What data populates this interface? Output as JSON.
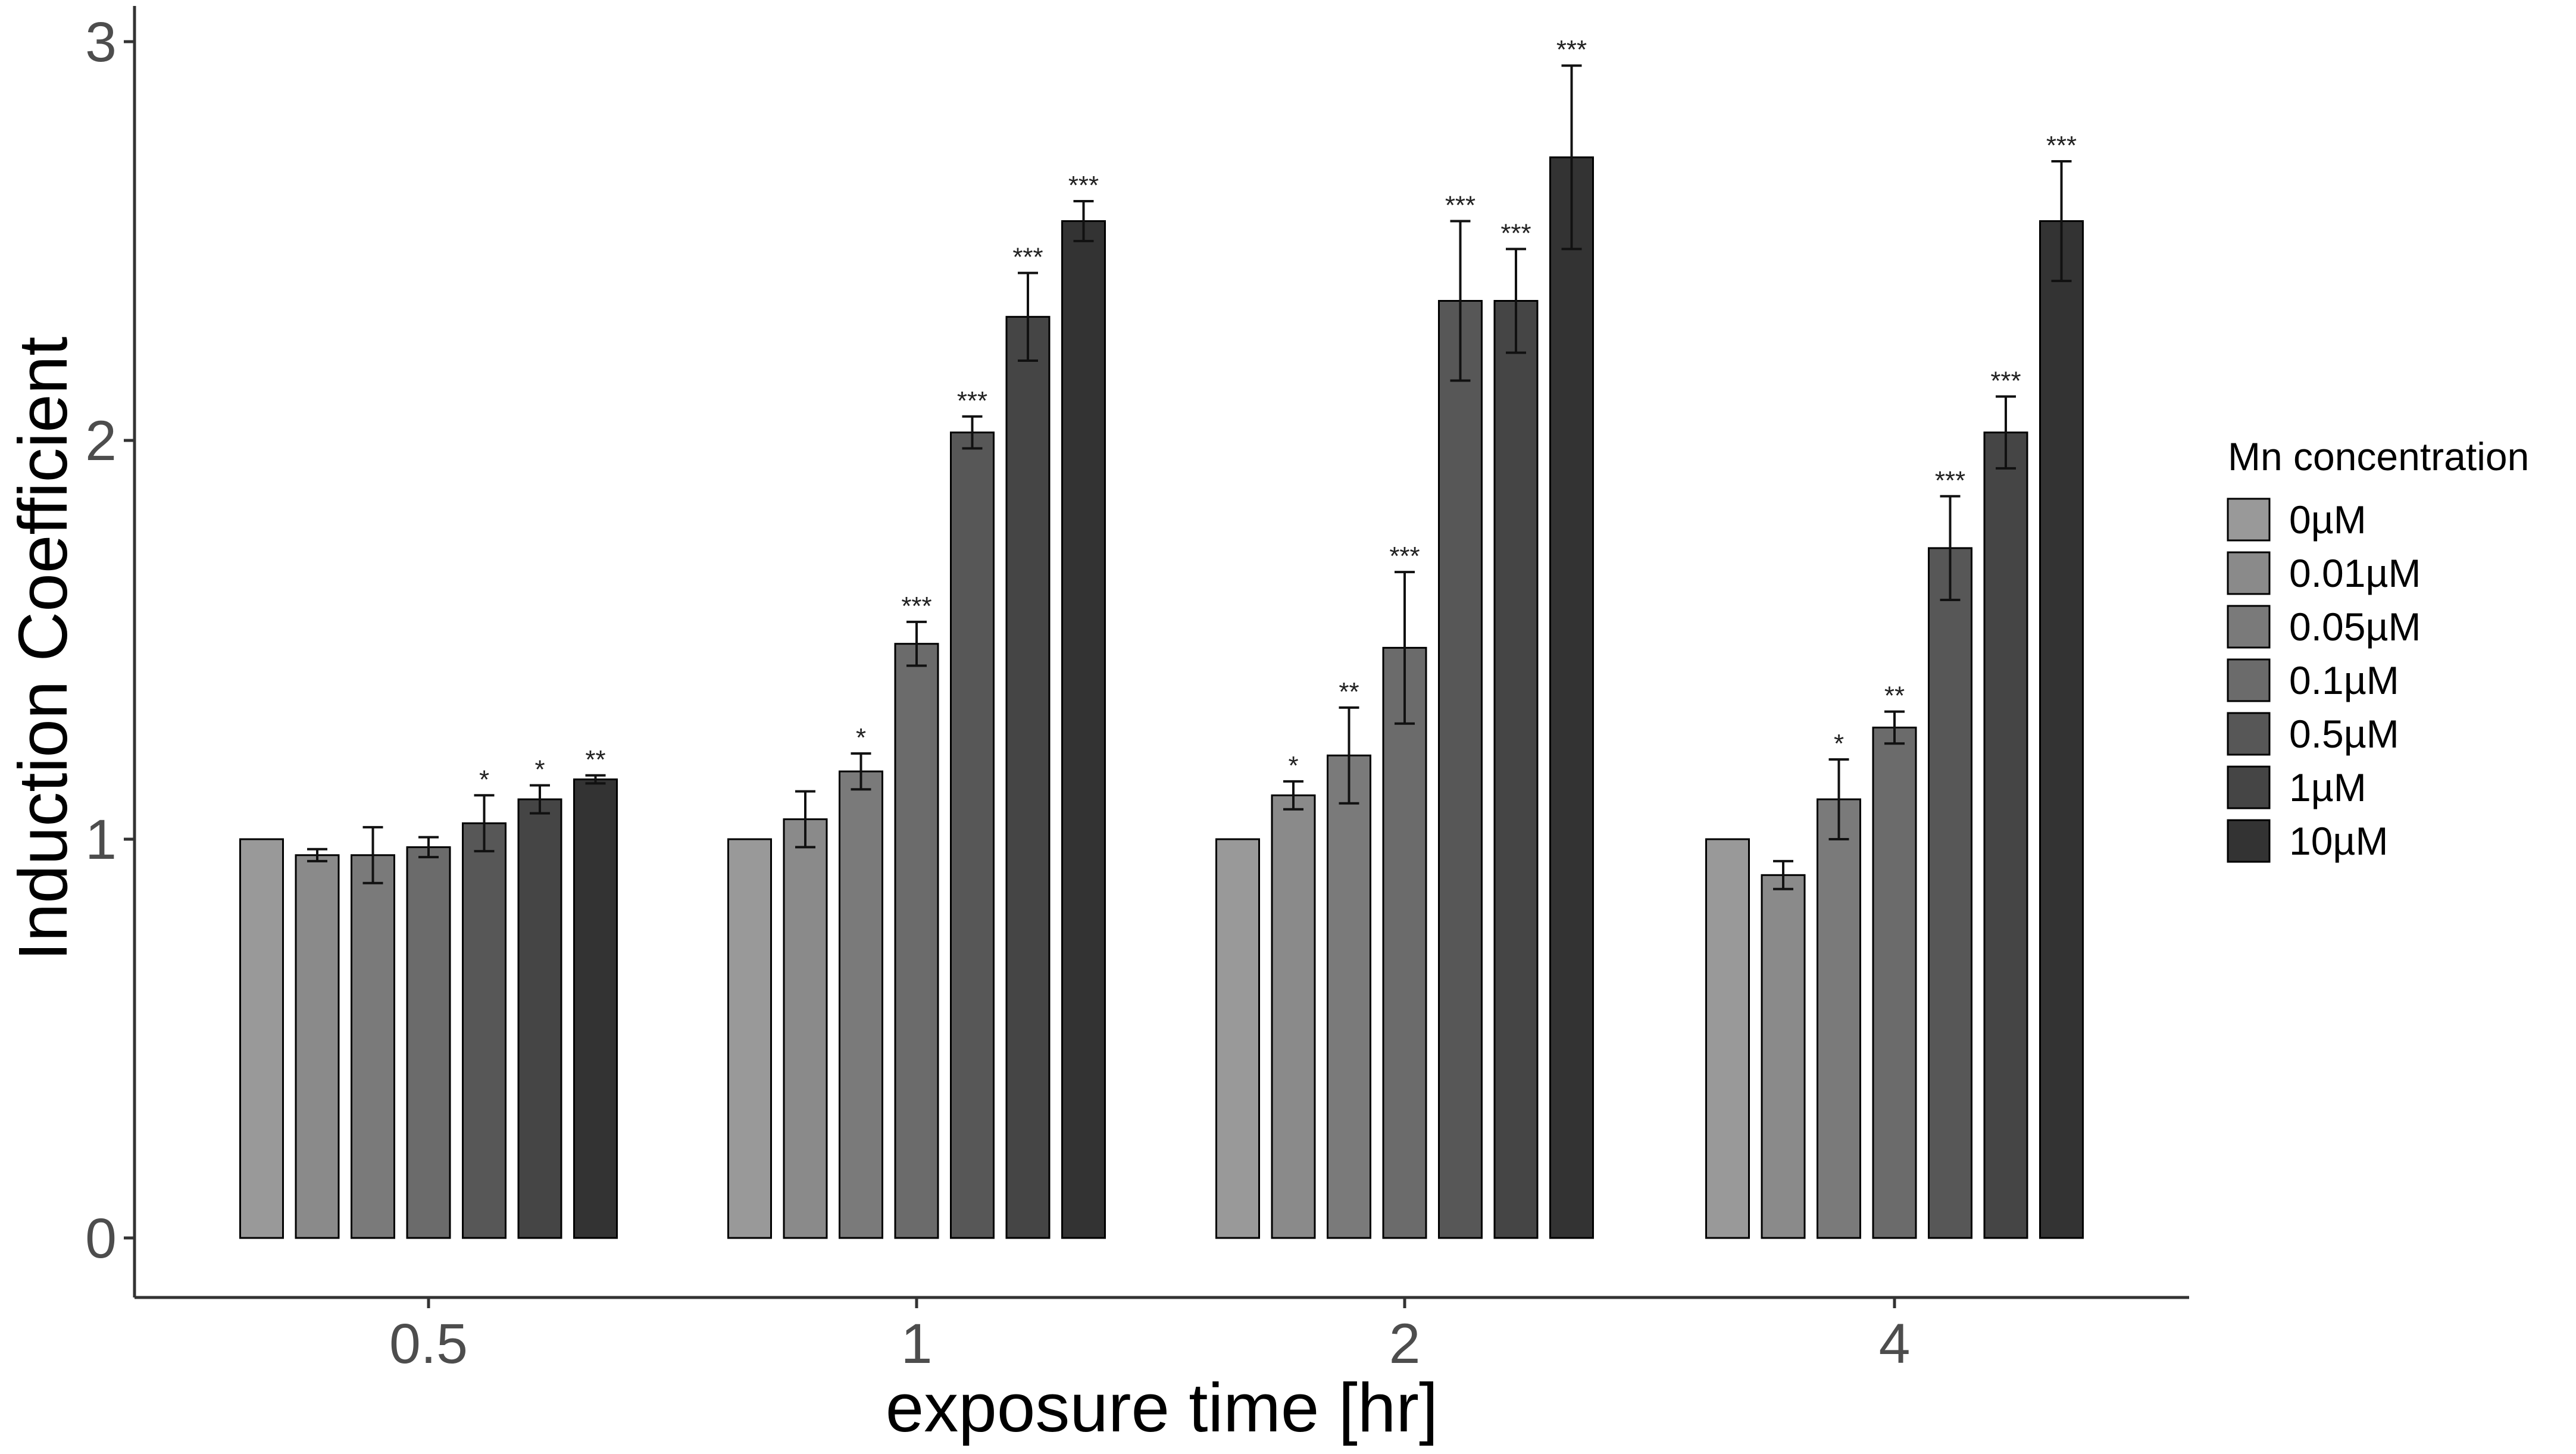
{
  "chart_data": {
    "type": "bar",
    "xlabel": "exposure time [hr]",
    "ylabel": "Induction Coefficient",
    "categories": [
      "0.5",
      "1",
      "2",
      "4"
    ],
    "ylim": [
      0,
      3
    ],
    "yticks": [
      "0",
      "1",
      "2",
      "3"
    ],
    "grid": false,
    "legend": {
      "title": "Mn concentration",
      "position": "right"
    },
    "series": [
      {
        "name": "0µM",
        "color": "#999999",
        "values": [
          1.0,
          1.0,
          1.0,
          1.0
        ],
        "errors": [
          0,
          0,
          0,
          0
        ],
        "significance": [
          "",
          "",
          "",
          ""
        ]
      },
      {
        "name": "0.01µM",
        "color": "#8a8a8a",
        "values": [
          0.96,
          1.05,
          1.11,
          0.91
        ],
        "errors": [
          0.015,
          0.07,
          0.035,
          0.035
        ],
        "significance": [
          "",
          "",
          "*",
          ""
        ]
      },
      {
        "name": "0.05µM",
        "color": "#7a7a7a",
        "values": [
          0.96,
          1.17,
          1.21,
          1.1
        ],
        "errors": [
          0.07,
          0.045,
          0.12,
          0.1
        ],
        "significance": [
          "",
          "*",
          "**",
          "*"
        ]
      },
      {
        "name": "0.1µM",
        "color": "#6b6b6b",
        "values": [
          0.98,
          1.49,
          1.48,
          1.28
        ],
        "errors": [
          0.025,
          0.055,
          0.19,
          0.04
        ],
        "significance": [
          "",
          "***",
          "***",
          "**"
        ]
      },
      {
        "name": "0.5µM",
        "color": "#575757",
        "values": [
          1.04,
          2.02,
          2.35,
          1.73
        ],
        "errors": [
          0.07,
          0.04,
          0.2,
          0.13
        ],
        "significance": [
          "*",
          "***",
          "***",
          "***"
        ]
      },
      {
        "name": "1µM",
        "color": "#454545",
        "values": [
          1.1,
          2.31,
          2.35,
          2.02
        ],
        "errors": [
          0.035,
          0.11,
          0.13,
          0.09
        ],
        "significance": [
          "*",
          "***",
          "***",
          "***"
        ]
      },
      {
        "name": "10µM",
        "color": "#333333",
        "values": [
          1.15,
          2.55,
          2.71,
          2.55
        ],
        "errors": [
          0.01,
          0.05,
          0.23,
          0.15
        ],
        "significance": [
          "**",
          "***",
          "***",
          "***"
        ]
      }
    ]
  }
}
